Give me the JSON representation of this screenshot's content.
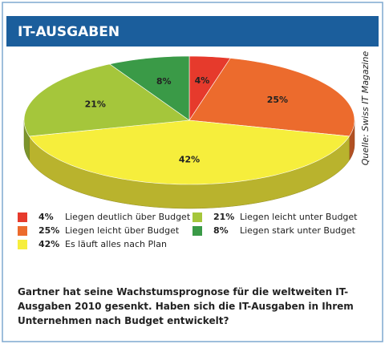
{
  "chart_data": {
    "type": "pie3d",
    "title": "IT-AUSGABEN",
    "source": "Quelle: Swiss IT Magazine",
    "categories": [
      "Liegen deutlich über Budget",
      "Liegen leicht über Budget",
      "Es läuft alles nach Plan",
      "Liegen leicht unter Budget",
      "Liegen stark unter Budget"
    ],
    "values": [
      4,
      25,
      42,
      21,
      8
    ],
    "value_labels": [
      "4%",
      "25%",
      "42%",
      "21%",
      "8%"
    ],
    "colors": [
      "#e63a2c",
      "#ec6b2d",
      "#f6ee3c",
      "#a5c63b",
      "#3a9a47"
    ],
    "question": "Gartner hat seine Wachstumsprognose für die weltweiten IT-Ausgaben 2010 gesenkt. Haben sich die IT-Ausgaben in Ihrem Unternehmen nach Budget entwickelt?"
  }
}
